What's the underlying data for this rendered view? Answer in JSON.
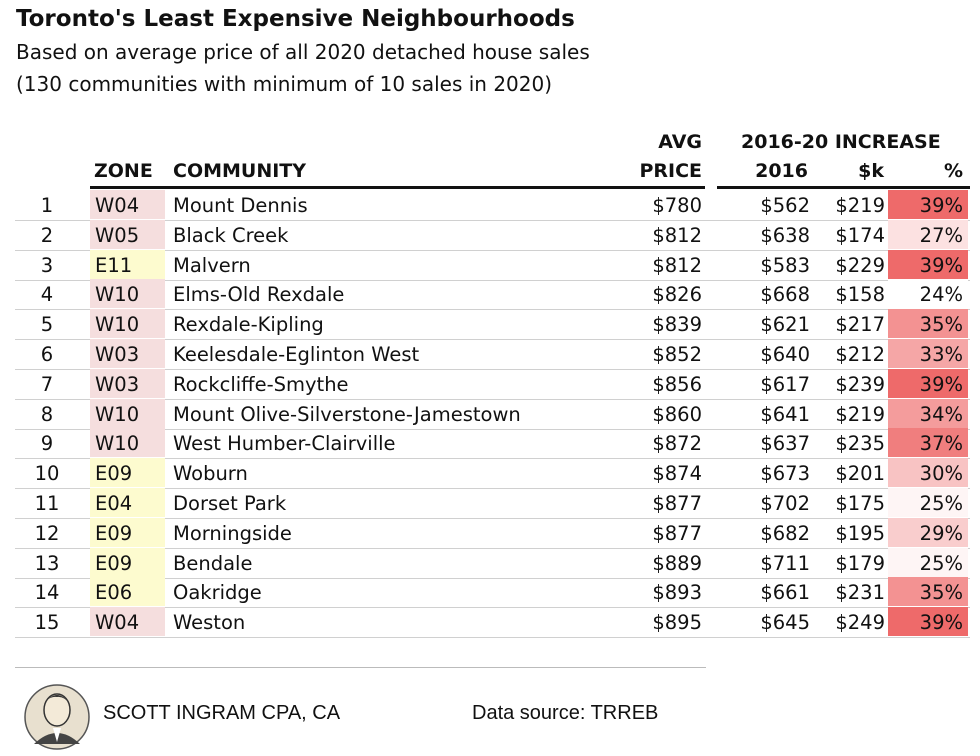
{
  "header": {
    "title": "Toronto's Least Expensive Neighbourhoods",
    "subtitle": [
      "Based on average price of all 2020 detached house sales",
      "(130 communities with minimum of 10 sales in 2020)"
    ]
  },
  "table": {
    "group_headers": [
      "AVG",
      "2016-20 INCREASE"
    ],
    "columns": [
      "ZONE",
      "COMMUNITY",
      "PRICE",
      "2016",
      "$k",
      "%"
    ],
    "rows": [
      [
        "1",
        "W04",
        "Mount Dennis",
        "$780",
        "$562",
        "$219",
        "39%"
      ],
      [
        "2",
        "W05",
        "Black Creek",
        "$812",
        "$638",
        "$174",
        "27%"
      ],
      [
        "3",
        "E11",
        "Malvern",
        "$812",
        "$583",
        "$229",
        "39%"
      ],
      [
        "4",
        "W10",
        "Elms-Old Rexdale",
        "$826",
        "$668",
        "$158",
        "24%"
      ],
      [
        "5",
        "W10",
        "Rexdale-Kipling",
        "$839",
        "$621",
        "$217",
        "35%"
      ],
      [
        "6",
        "W03",
        "Keelesdale-Eglinton West",
        "$852",
        "$640",
        "$212",
        "33%"
      ],
      [
        "7",
        "W03",
        "Rockcliffe-Smythe",
        "$856",
        "$617",
        "$239",
        "39%"
      ],
      [
        "8",
        "W10",
        "Mount Olive-Silverstone-Jamestown",
        "$860",
        "$641",
        "$219",
        "34%"
      ],
      [
        "9",
        "W10",
        "West Humber-Clairville",
        "$872",
        "$637",
        "$235",
        "37%"
      ],
      [
        "10",
        "E09",
        "Woburn",
        "$874",
        "$673",
        "$201",
        "30%"
      ],
      [
        "11",
        "E04",
        "Dorset Park",
        "$877",
        "$702",
        "$175",
        "25%"
      ],
      [
        "12",
        "E09",
        "Morningside",
        "$877",
        "$682",
        "$195",
        "29%"
      ],
      [
        "13",
        "E09",
        "Bendale",
        "$889",
        "$711",
        "$179",
        "25%"
      ],
      [
        "14",
        "E06",
        "Oakridge",
        "$893",
        "$661",
        "$231",
        "35%"
      ],
      [
        "15",
        "W04",
        "Weston",
        "$895",
        "$645",
        "$249",
        "39%"
      ]
    ]
  },
  "footer": {
    "author": "SCOTT INGRAM CPA, CA",
    "source": "Data source: TRREB"
  }
}
